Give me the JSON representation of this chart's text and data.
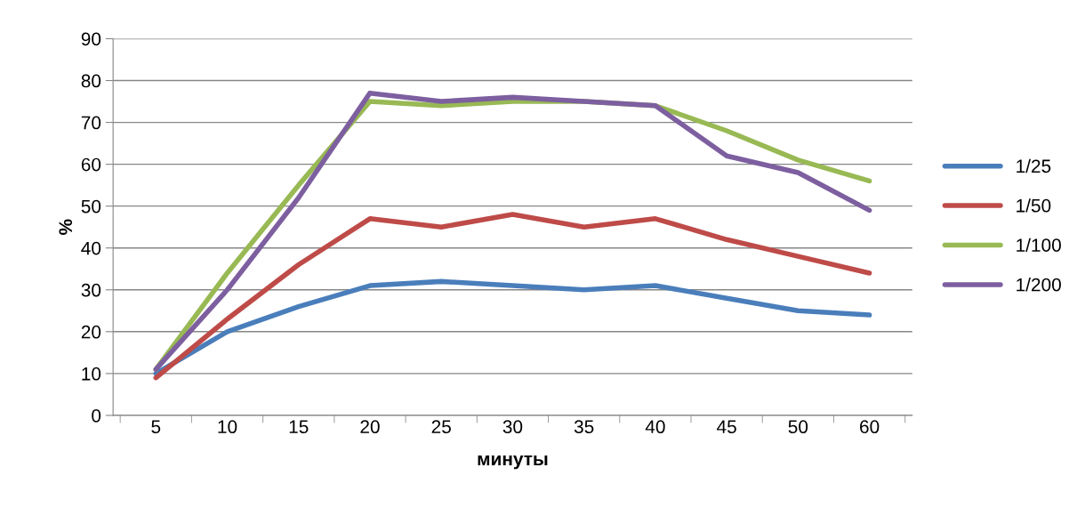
{
  "chart_data": {
    "type": "line",
    "xlabel": "минуты",
    "ylabel": "%",
    "categories": [
      "5",
      "10",
      "15",
      "20",
      "25",
      "30",
      "35",
      "40",
      "45",
      "50",
      "60"
    ],
    "series": [
      {
        "name": "1/25",
        "color": "#4a7ebb",
        "values": [
          10,
          20,
          26,
          31,
          32,
          31,
          30,
          31,
          28,
          25,
          24
        ]
      },
      {
        "name": "1/50",
        "color": "#be4b48",
        "values": [
          9,
          23,
          36,
          47,
          45,
          48,
          45,
          47,
          42,
          38,
          34
        ]
      },
      {
        "name": "1/100",
        "color": "#98b954",
        "values": [
          11,
          34,
          55,
          75,
          74,
          75,
          75,
          74,
          68,
          61,
          56
        ]
      },
      {
        "name": "1/200",
        "color": "#7d5fa0",
        "values": [
          11,
          30,
          52,
          77,
          75,
          76,
          75,
          74,
          62,
          58,
          49
        ]
      }
    ],
    "ylim": [
      0,
      90
    ],
    "yticks": [
      0,
      10,
      20,
      30,
      40,
      50,
      60,
      70,
      80,
      90
    ],
    "grid": "y",
    "legend": "right",
    "marker": "none",
    "line_style": "solid"
  }
}
